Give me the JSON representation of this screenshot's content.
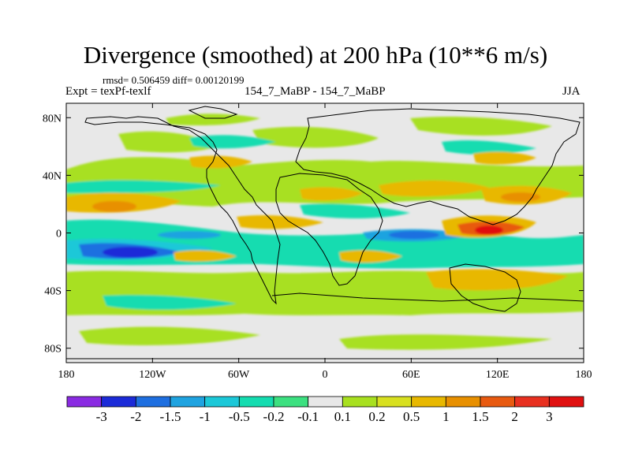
{
  "figure": {
    "title": "Divergence (smoothed) at 200 hPa (10**6 m/s)",
    "stats": "rmsd= 0.506459 diff= 0.00120199",
    "experiment": "Expt = texPf-texlf",
    "case_name": "154_7_MaBP - 154_7_MaBP",
    "season": "JJA"
  },
  "chart_data": {
    "type": "heatmap",
    "title": "Divergence (smoothed) at 200 hPa (10**6 m/s)",
    "variable": "Divergence (smoothed)",
    "level": "200 hPa",
    "units": "10**6 m/s",
    "season": "JJA",
    "rmsd": 0.506459,
    "diff": 0.00120199,
    "x_range": [
      -180,
      180
    ],
    "y_range": [
      -90,
      90
    ],
    "x_ticks": [
      {
        "value": -180,
        "label": "180"
      },
      {
        "value": -120,
        "label": "120W"
      },
      {
        "value": -60,
        "label": "60W"
      },
      {
        "value": 0,
        "label": "0"
      },
      {
        "value": 60,
        "label": "60E"
      },
      {
        "value": 120,
        "label": "120E"
      },
      {
        "value": 180,
        "label": "180"
      }
    ],
    "y_ticks": [
      {
        "value": 80,
        "label": "80N"
      },
      {
        "value": 40,
        "label": "40N"
      },
      {
        "value": 0,
        "label": "0"
      },
      {
        "value": -40,
        "label": "40S"
      },
      {
        "value": -80,
        "label": "80S"
      }
    ],
    "colorbar": {
      "labels": [
        "-3",
        "-2",
        "-1.5",
        "-1",
        "-0.5",
        "-0.2",
        "-0.1",
        "0.1",
        "0.2",
        "0.5",
        "1",
        "1.5",
        "2",
        "3"
      ],
      "colors": [
        "#8a2be2",
        "#1c2bd8",
        "#1e6fe0",
        "#1fa3e0",
        "#1cc8d8",
        "#14dcb0",
        "#3ce080",
        "#e8e8e8",
        "#a8e020",
        "#d8e020",
        "#e8b800",
        "#e89000",
        "#e85a10",
        "#e83020",
        "#e01010"
      ]
    },
    "features": [
      {
        "lon": -125,
        "lat": -10,
        "value": -3
      },
      {
        "lon": 65,
        "lat": 0,
        "value": -2
      },
      {
        "lon": 115,
        "lat": 0,
        "value": 3
      },
      {
        "lon": -150,
        "lat": 20,
        "value": 1.5
      },
      {
        "lon": 140,
        "lat": 25,
        "value": 1.5
      }
    ]
  }
}
